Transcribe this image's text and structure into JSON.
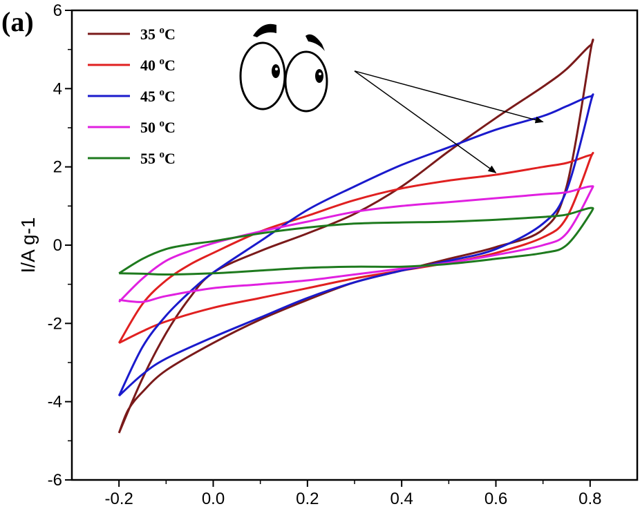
{
  "panel_label": "(a)",
  "chart_data": {
    "type": "line",
    "title": "",
    "xlabel": "",
    "ylabel": "I/A g-1",
    "xlim": [
      -0.3,
      0.9
    ],
    "ylim": [
      -6,
      6
    ],
    "x_ticks": [
      -0.2,
      0.0,
      0.2,
      0.4,
      0.6,
      0.8
    ],
    "x_tick_labels": [
      "-0.2",
      "0.0",
      "0.2",
      "0.4",
      "0.6",
      "0.8"
    ],
    "y_ticks": [
      -6,
      -4,
      -2,
      0,
      2,
      4,
      6
    ],
    "y_tick_labels": [
      "-6",
      "-4",
      "-2",
      "0",
      "2",
      "4",
      "6"
    ],
    "legend_position": "top-left",
    "series": [
      {
        "name": "35 °C",
        "temp": "35",
        "unit": "C",
        "color": "#7a1a1a",
        "x": [
          -0.2,
          -0.15,
          -0.1,
          -0.05,
          0.0,
          0.1,
          0.2,
          0.3,
          0.4,
          0.5,
          0.6,
          0.7,
          0.75,
          0.8,
          0.8,
          0.75,
          0.7,
          0.6,
          0.5,
          0.4,
          0.3,
          0.2,
          0.1,
          0.0,
          -0.1,
          -0.15,
          -0.18,
          -0.2
        ],
        "y": [
          -4.8,
          -3.4,
          -2.25,
          -1.35,
          -0.7,
          -0.15,
          0.3,
          0.8,
          1.5,
          2.4,
          3.25,
          4.05,
          4.5,
          5.1,
          4.9,
          1.5,
          0.4,
          -0.05,
          -0.35,
          -0.65,
          -0.95,
          -1.4,
          -1.9,
          -2.5,
          -3.2,
          -3.75,
          -4.2,
          -4.8
        ]
      },
      {
        "name": "40 °C",
        "temp": "40",
        "unit": "C",
        "color": "#e02020",
        "x": [
          -0.2,
          -0.15,
          -0.1,
          -0.05,
          0.0,
          0.1,
          0.2,
          0.3,
          0.4,
          0.5,
          0.6,
          0.7,
          0.75,
          0.8,
          0.8,
          0.75,
          0.7,
          0.6,
          0.5,
          0.4,
          0.3,
          0.2,
          0.1,
          0.0,
          -0.1,
          -0.15,
          -0.2
        ],
        "y": [
          -2.5,
          -1.5,
          -0.9,
          -0.5,
          -0.2,
          0.35,
          0.75,
          1.15,
          1.45,
          1.65,
          1.8,
          2.0,
          2.1,
          2.3,
          2.2,
          0.7,
          0.2,
          -0.2,
          -0.45,
          -0.65,
          -0.85,
          -1.1,
          -1.35,
          -1.6,
          -1.95,
          -2.2,
          -2.5
        ]
      },
      {
        "name": "45 °C",
        "temp": "45",
        "unit": "C",
        "color": "#1a1acc",
        "x": [
          -0.2,
          -0.15,
          -0.1,
          -0.05,
          0.0,
          0.1,
          0.2,
          0.3,
          0.4,
          0.5,
          0.6,
          0.7,
          0.75,
          0.8,
          0.8,
          0.75,
          0.7,
          0.6,
          0.5,
          0.4,
          0.3,
          0.2,
          0.1,
          0.0,
          -0.1,
          -0.15,
          -0.2
        ],
        "y": [
          -3.85,
          -2.6,
          -1.8,
          -1.2,
          -0.7,
          0.1,
          0.9,
          1.5,
          2.05,
          2.5,
          2.95,
          3.3,
          3.55,
          3.8,
          3.6,
          1.4,
          0.55,
          -0.1,
          -0.4,
          -0.65,
          -0.95,
          -1.35,
          -1.85,
          -2.35,
          -2.9,
          -3.3,
          -3.85
        ]
      },
      {
        "name": "50 °C",
        "temp": "50",
        "unit": "C",
        "color": "#e020e0",
        "x": [
          -0.2,
          -0.15,
          -0.1,
          -0.05,
          0.0,
          0.1,
          0.2,
          0.3,
          0.4,
          0.5,
          0.6,
          0.7,
          0.75,
          0.8,
          0.8,
          0.75,
          0.7,
          0.6,
          0.5,
          0.4,
          0.3,
          0.2,
          0.1,
          0.0,
          -0.1,
          -0.15,
          -0.2
        ],
        "y": [
          -1.45,
          -0.85,
          -0.4,
          -0.15,
          0.05,
          0.35,
          0.6,
          0.85,
          1.0,
          1.1,
          1.2,
          1.3,
          1.35,
          1.5,
          1.35,
          0.3,
          0.0,
          -0.25,
          -0.45,
          -0.6,
          -0.75,
          -0.9,
          -1.0,
          -1.1,
          -1.3,
          -1.45,
          -1.4
        ]
      },
      {
        "name": "55 °C",
        "temp": "55",
        "unit": "C",
        "color": "#1e7a1e",
        "x": [
          -0.2,
          -0.15,
          -0.1,
          -0.05,
          0.0,
          0.1,
          0.2,
          0.3,
          0.4,
          0.5,
          0.6,
          0.7,
          0.75,
          0.8,
          0.8,
          0.75,
          0.7,
          0.6,
          0.5,
          0.4,
          0.3,
          0.2,
          0.1,
          0.0,
          -0.1,
          -0.15,
          -0.2
        ],
        "y": [
          -0.72,
          -0.35,
          -0.1,
          0.02,
          0.1,
          0.3,
          0.45,
          0.55,
          0.58,
          0.6,
          0.65,
          0.72,
          0.78,
          0.95,
          0.8,
          0.0,
          -0.2,
          -0.35,
          -0.48,
          -0.55,
          -0.55,
          -0.58,
          -0.65,
          -0.72,
          -0.75,
          -0.73,
          -0.72
        ]
      }
    ],
    "annotations": [
      {
        "type": "arrow",
        "label": "",
        "from": [
          0.3,
          4.45
        ],
        "to": [
          0.7,
          3.15
        ]
      },
      {
        "type": "arrow",
        "label": "",
        "from": [
          0.3,
          4.45
        ],
        "to": [
          0.6,
          1.85
        ]
      }
    ]
  }
}
